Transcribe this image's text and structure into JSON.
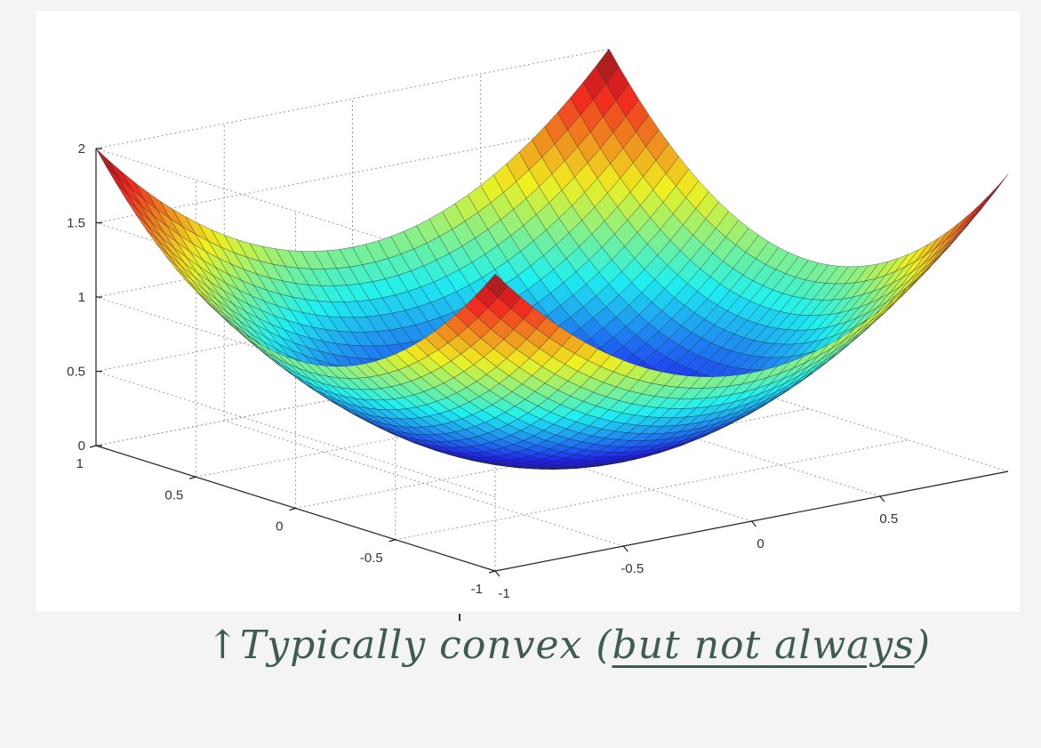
{
  "chart_data": {
    "type": "surface",
    "function": "z = x^2 + y^2",
    "x": {
      "range": [
        -1,
        1
      ],
      "ticks": [
        "-1",
        "-0.5",
        "0",
        "0.5"
      ]
    },
    "y": {
      "range": [
        -1,
        1
      ],
      "ticks": [
        "-1",
        "-0.5",
        "0",
        "0.5",
        "1"
      ]
    },
    "z": {
      "range": [
        0,
        2
      ],
      "ticks": [
        "0",
        "0.5",
        "1",
        "1.5",
        "2"
      ]
    },
    "grid_resolution": 41,
    "colormap": "jet",
    "grid": true,
    "title": "",
    "xlabel": "",
    "ylabel": "",
    "zlabel": ""
  },
  "annotation": {
    "arrow_glyph": "↑",
    "text_prefix": "Typically convex (",
    "text_underlined": "but not always",
    "text_suffix": ")",
    "ink_color": "#3e5c52"
  }
}
